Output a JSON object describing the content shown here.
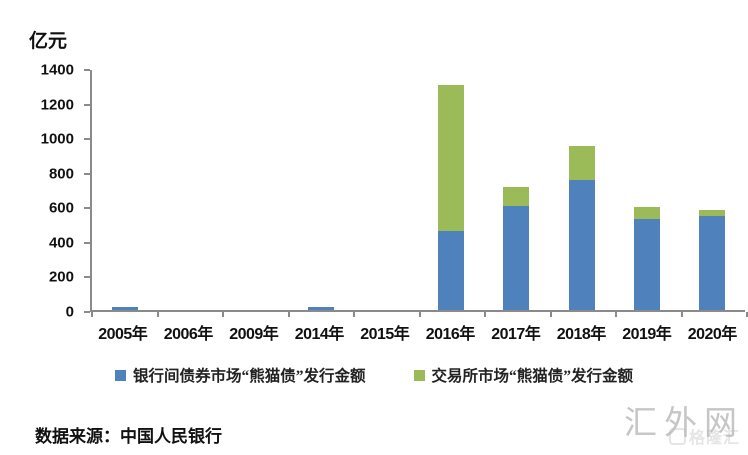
{
  "unit_label": "亿元",
  "source_note": "数据来源：中国人民银行",
  "watermark": "汇外网",
  "watermark_secondary": "格隆汇",
  "colors": {
    "interbank_blue": "#4F81BD",
    "exchange_green": "#9BBB59",
    "axis_gray": "#8A8A8A",
    "text_black": "#111111",
    "watermark_gray": "#C6C6C6"
  },
  "chart_data": {
    "type": "bar",
    "stacked": true,
    "title": "",
    "ylabel": "亿元",
    "xlabel": "",
    "ylim": [
      0,
      1400
    ],
    "ytick_interval": 200,
    "yticks": [
      "1400",
      "1200",
      "1000",
      "800",
      "600",
      "400",
      "200",
      "0"
    ],
    "grid": false,
    "legend_position": "bottom",
    "categories": [
      "2005年",
      "2006年",
      "2009年",
      "2014年",
      "2015年",
      "2016年",
      "2017年",
      "2018年",
      "2019年",
      "2020年"
    ],
    "series": [
      {
        "name": "银行间债券市场“熊猫债”发行金额",
        "color": "#4F81BD",
        "values": [
          20,
          0,
          0,
          20,
          0,
          455,
          600,
          750,
          525,
          545
        ]
      },
      {
        "name": "交易所市场“熊猫债”发行金额",
        "color": "#9BBB59",
        "values": [
          0,
          0,
          0,
          0,
          0,
          845,
          110,
          200,
          70,
          35
        ]
      }
    ]
  }
}
